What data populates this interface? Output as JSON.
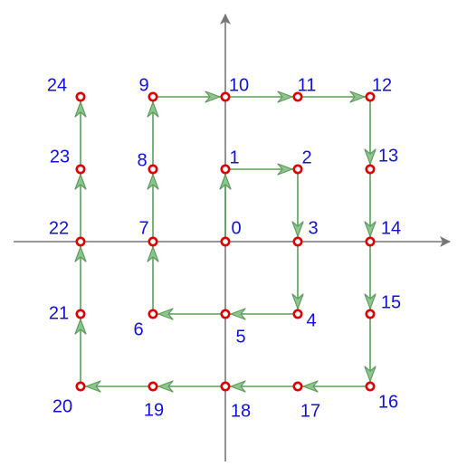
{
  "colors": {
    "axis": "#777777",
    "path": "#5a9e5a",
    "point_stroke": "#e00000",
    "point_fill": "#ffffff",
    "label": "#1010e0",
    "background": "#ffffff"
  },
  "diagram": {
    "type": "spiral-lattice-path",
    "points": [
      {
        "n": 0,
        "x": 0,
        "y": 0,
        "label": "0"
      },
      {
        "n": 1,
        "x": 0,
        "y": 1,
        "label": "1"
      },
      {
        "n": 2,
        "x": 1,
        "y": 1,
        "label": "2"
      },
      {
        "n": 3,
        "x": 1,
        "y": 0,
        "label": "3"
      },
      {
        "n": 4,
        "x": 1,
        "y": -1,
        "label": "4"
      },
      {
        "n": 5,
        "x": 0,
        "y": -1,
        "label": "5"
      },
      {
        "n": 6,
        "x": -1,
        "y": -1,
        "label": "6"
      },
      {
        "n": 7,
        "x": -1,
        "y": 0,
        "label": "7"
      },
      {
        "n": 8,
        "x": -1,
        "y": 1,
        "label": "8"
      },
      {
        "n": 9,
        "x": -1,
        "y": 2,
        "label": "9"
      },
      {
        "n": 10,
        "x": 0,
        "y": 2,
        "label": "10"
      },
      {
        "n": 11,
        "x": 1,
        "y": 2,
        "label": "11"
      },
      {
        "n": 12,
        "x": 2,
        "y": 2,
        "label": "12"
      },
      {
        "n": 13,
        "x": 2,
        "y": 1,
        "label": "13"
      },
      {
        "n": 14,
        "x": 2,
        "y": 0,
        "label": "14"
      },
      {
        "n": 15,
        "x": 2,
        "y": -1,
        "label": "15"
      },
      {
        "n": 16,
        "x": 2,
        "y": -2,
        "label": "16"
      },
      {
        "n": 17,
        "x": 1,
        "y": -2,
        "label": "17"
      },
      {
        "n": 18,
        "x": 0,
        "y": -2,
        "label": "18"
      },
      {
        "n": 19,
        "x": -1,
        "y": -2,
        "label": "19"
      },
      {
        "n": 20,
        "x": -2,
        "y": -2,
        "label": "20"
      },
      {
        "n": 21,
        "x": -2,
        "y": -1,
        "label": "21"
      },
      {
        "n": 22,
        "x": -2,
        "y": 0,
        "label": "22"
      },
      {
        "n": 23,
        "x": -2,
        "y": 1,
        "label": "23"
      },
      {
        "n": 24,
        "x": -2,
        "y": 2,
        "label": "24"
      }
    ]
  }
}
